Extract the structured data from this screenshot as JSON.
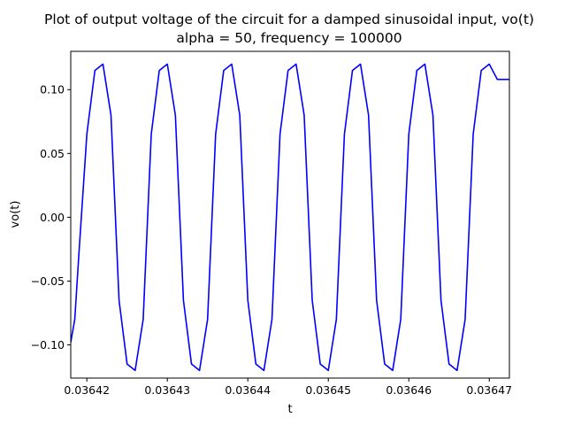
{
  "chart_data": {
    "type": "line",
    "title": "Plot of output voltage of the circuit for a damped sinusoidal input, vo(t)",
    "subtitle": "alpha = 50, frequency = 100000",
    "xlabel": "t",
    "ylabel": "vo(t)",
    "xlim": [
      0.036418,
      0.0364725
    ],
    "ylim": [
      -0.126,
      0.13
    ],
    "xticks": [
      {
        "value": 0.03642,
        "label": "0.03642"
      },
      {
        "value": 0.03643,
        "label": "0.03643"
      },
      {
        "value": 0.03644,
        "label": "0.03644"
      },
      {
        "value": 0.03645,
        "label": "0.03645"
      },
      {
        "value": 0.03646,
        "label": "0.03646"
      },
      {
        "value": 0.03647,
        "label": "0.03647"
      }
    ],
    "yticks": [
      {
        "value": 0.1,
        "label": "0.10"
      },
      {
        "value": 0.05,
        "label": "0.05"
      },
      {
        "value": 0.0,
        "label": "0.00"
      },
      {
        "value": -0.05,
        "label": "−0.05"
      },
      {
        "value": -0.1,
        "label": "−0.10"
      }
    ],
    "grid": false,
    "color": "#0000ff",
    "series": [
      {
        "x": [
          0.036418,
          0.0364185,
          0.036419,
          0.03642,
          0.036421,
          0.036422,
          0.036423,
          0.036424,
          0.036425,
          0.036426,
          0.036427,
          0.036428,
          0.036429,
          0.03643,
          0.036431,
          0.036432,
          0.036433,
          0.036434,
          0.036435,
          0.036436,
          0.036437,
          0.036438,
          0.036439,
          0.03644,
          0.036441,
          0.036442,
          0.036443,
          0.036444,
          0.036445,
          0.036446,
          0.036447,
          0.036448,
          0.036449,
          0.03645,
          0.036451,
          0.036452,
          0.036453,
          0.036454,
          0.036455,
          0.036456,
          0.036457,
          0.036458,
          0.036459,
          0.03646,
          0.036461,
          0.036462,
          0.036463,
          0.036464,
          0.036465,
          0.036466,
          0.036467,
          0.036468,
          0.036469,
          0.03647,
          0.036471,
          0.036472,
          0.0364725
        ],
        "values": [
          -0.098,
          -0.08,
          -0.03,
          0.065,
          0.115,
          0.12,
          0.08,
          -0.065,
          -0.115,
          -0.12,
          -0.08,
          0.065,
          0.115,
          0.12,
          0.08,
          -0.065,
          -0.115,
          -0.12,
          -0.08,
          0.065,
          0.115,
          0.12,
          0.08,
          -0.065,
          -0.115,
          -0.12,
          -0.08,
          0.065,
          0.115,
          0.12,
          0.08,
          -0.065,
          -0.115,
          -0.12,
          -0.08,
          0.065,
          0.115,
          0.12,
          0.08,
          -0.065,
          -0.115,
          -0.12,
          -0.08,
          0.065,
          0.115,
          0.12,
          0.08,
          -0.065,
          -0.115,
          -0.12,
          -0.08,
          0.065,
          0.115,
          0.12,
          0.108,
          0.108,
          0.108
        ]
      }
    ]
  }
}
